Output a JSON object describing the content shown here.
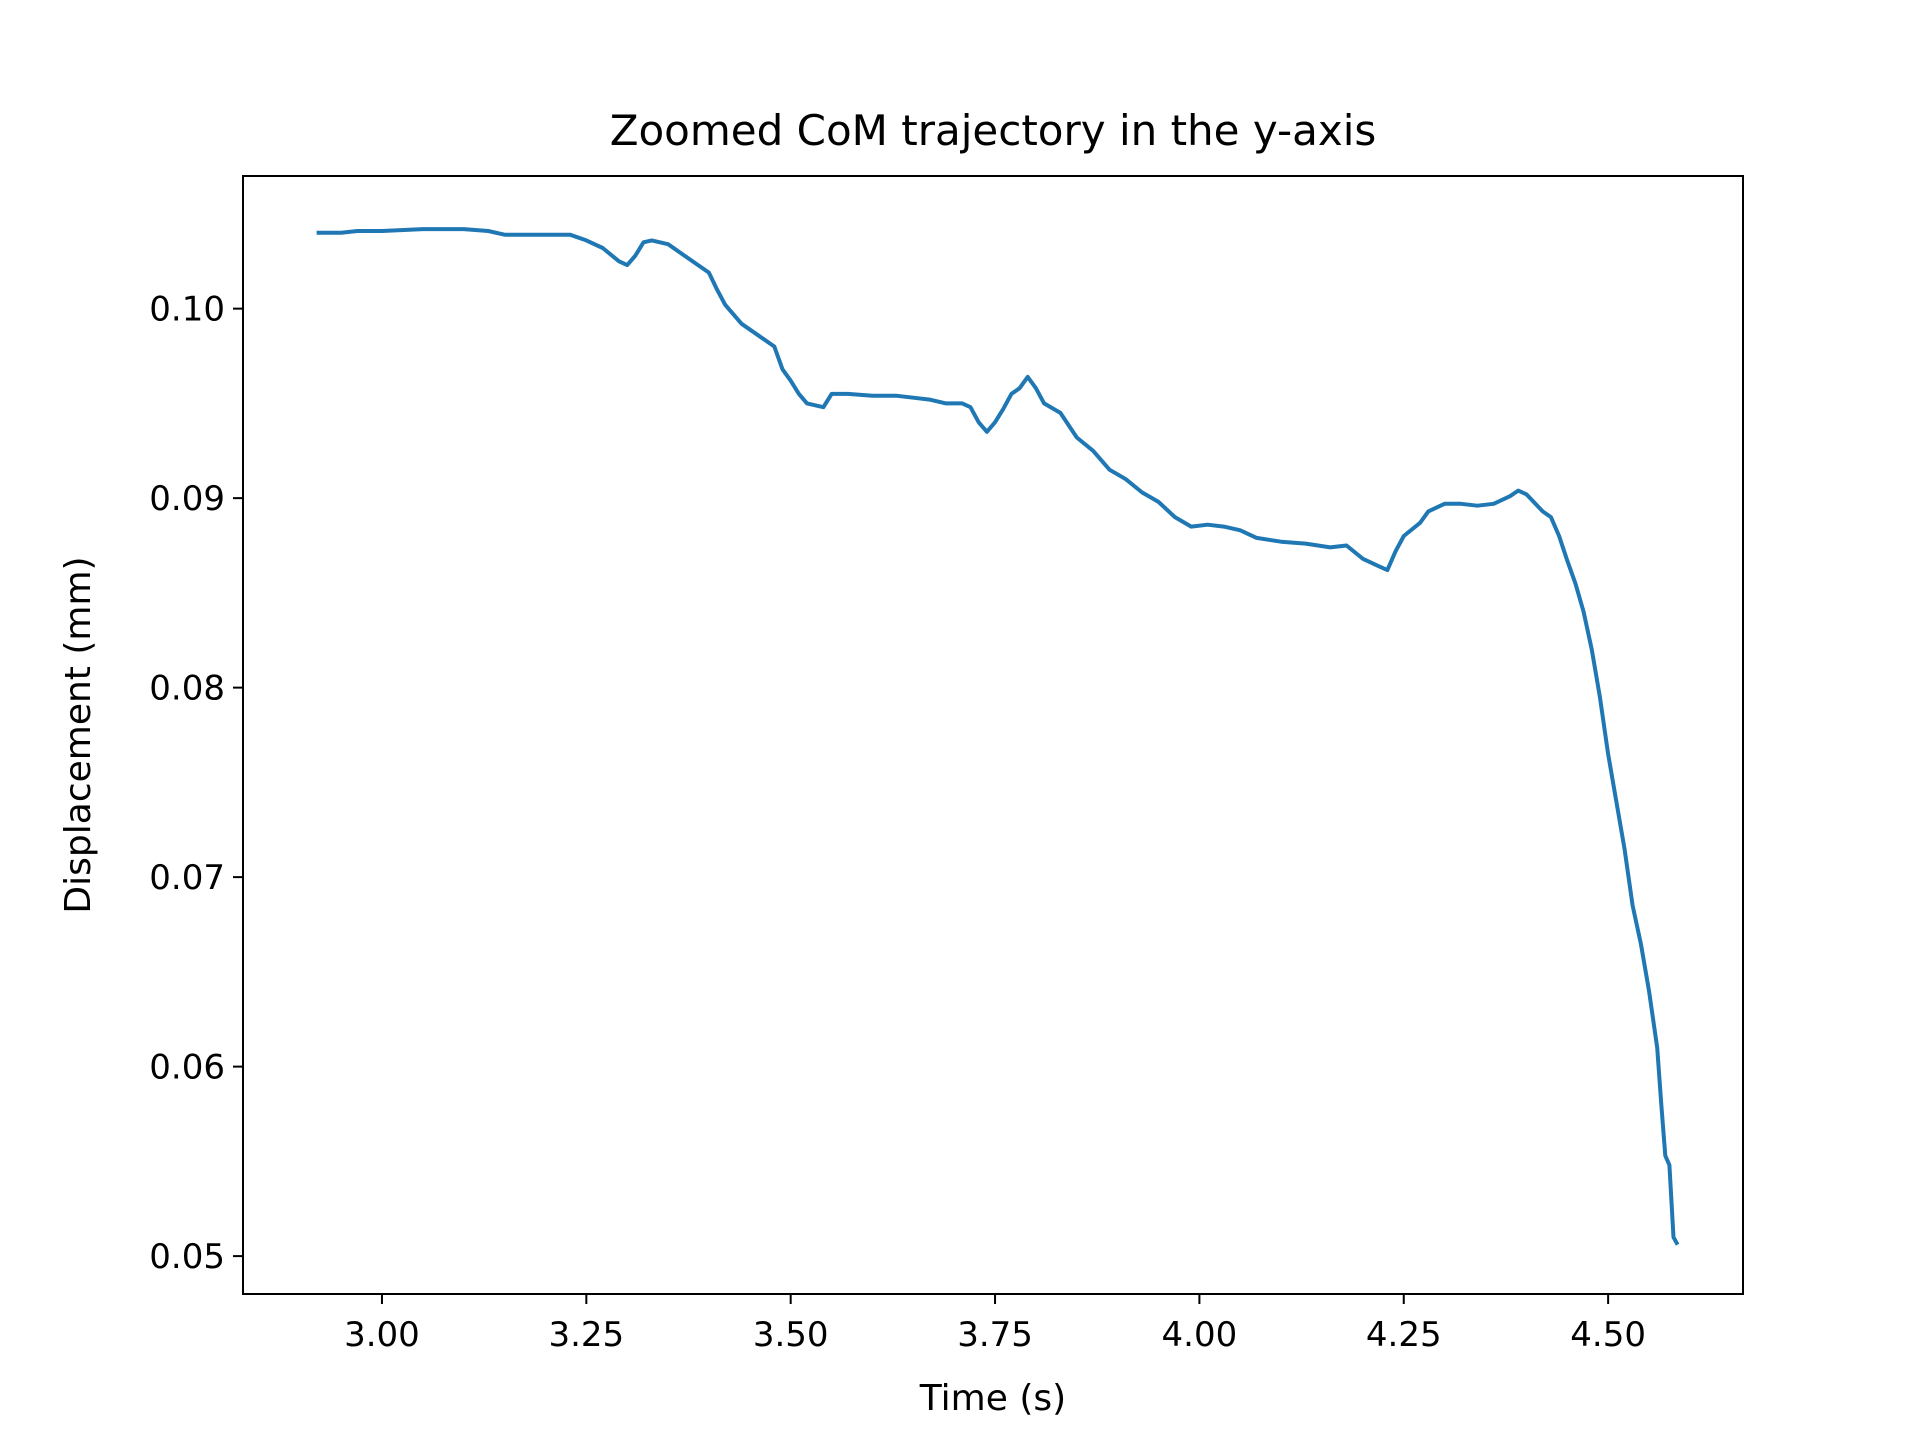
{
  "chart_data": {
    "type": "line",
    "title": "Zoomed CoM trajectory in the y-axis",
    "xlabel": "Time (s)",
    "ylabel": "Displacement (mm)",
    "xlim": [
      2.83,
      4.665
    ],
    "ylim": [
      0.048,
      0.107
    ],
    "x_ticks": [
      "3.00",
      "3.25",
      "3.50",
      "3.75",
      "4.00",
      "4.25",
      "4.50"
    ],
    "y_ticks": [
      "0.05",
      "0.06",
      "0.07",
      "0.08",
      "0.09",
      "0.10"
    ],
    "grid": false,
    "series": [
      {
        "color": "#1f77b4",
        "points": [
          [
            2.92,
            0.104
          ],
          [
            2.95,
            0.104
          ],
          [
            2.97,
            0.1041
          ],
          [
            3.0,
            0.1041
          ],
          [
            3.05,
            0.1042
          ],
          [
            3.1,
            0.1042
          ],
          [
            3.13,
            0.1041
          ],
          [
            3.15,
            0.1039
          ],
          [
            3.2,
            0.1039
          ],
          [
            3.23,
            0.1039
          ],
          [
            3.25,
            0.1036
          ],
          [
            3.27,
            0.1032
          ],
          [
            3.29,
            0.1025
          ],
          [
            3.3,
            0.1023
          ],
          [
            3.31,
            0.1028
          ],
          [
            3.32,
            0.1035
          ],
          [
            3.33,
            0.1036
          ],
          [
            3.35,
            0.1034
          ],
          [
            3.37,
            0.1028
          ],
          [
            3.39,
            0.1022
          ],
          [
            3.4,
            0.1019
          ],
          [
            3.41,
            0.101
          ],
          [
            3.42,
            0.1002
          ],
          [
            3.44,
            0.0992
          ],
          [
            3.46,
            0.0986
          ],
          [
            3.48,
            0.098
          ],
          [
            3.49,
            0.0968
          ],
          [
            3.5,
            0.0962
          ],
          [
            3.51,
            0.0955
          ],
          [
            3.52,
            0.095
          ],
          [
            3.54,
            0.0948
          ],
          [
            3.55,
            0.0955
          ],
          [
            3.57,
            0.0955
          ],
          [
            3.6,
            0.0954
          ],
          [
            3.63,
            0.0954
          ],
          [
            3.65,
            0.0953
          ],
          [
            3.67,
            0.0952
          ],
          [
            3.69,
            0.095
          ],
          [
            3.71,
            0.095
          ],
          [
            3.72,
            0.0948
          ],
          [
            3.73,
            0.094
          ],
          [
            3.74,
            0.0935
          ],
          [
            3.75,
            0.094
          ],
          [
            3.76,
            0.0947
          ],
          [
            3.77,
            0.0955
          ],
          [
            3.78,
            0.0958
          ],
          [
            3.79,
            0.0964
          ],
          [
            3.8,
            0.0958
          ],
          [
            3.81,
            0.095
          ],
          [
            3.83,
            0.0945
          ],
          [
            3.85,
            0.0932
          ],
          [
            3.87,
            0.0925
          ],
          [
            3.89,
            0.0915
          ],
          [
            3.91,
            0.091
          ],
          [
            3.93,
            0.0903
          ],
          [
            3.95,
            0.0898
          ],
          [
            3.97,
            0.089
          ],
          [
            3.99,
            0.0885
          ],
          [
            4.01,
            0.0886
          ],
          [
            4.03,
            0.0885
          ],
          [
            4.05,
            0.0883
          ],
          [
            4.07,
            0.0879
          ],
          [
            4.1,
            0.0877
          ],
          [
            4.13,
            0.0876
          ],
          [
            4.16,
            0.0874
          ],
          [
            4.18,
            0.0875
          ],
          [
            4.2,
            0.0868
          ],
          [
            4.22,
            0.0864
          ],
          [
            4.23,
            0.0862
          ],
          [
            4.24,
            0.0872
          ],
          [
            4.25,
            0.088
          ],
          [
            4.27,
            0.0887
          ],
          [
            4.28,
            0.0893
          ],
          [
            4.3,
            0.0897
          ],
          [
            4.32,
            0.0897
          ],
          [
            4.34,
            0.0896
          ],
          [
            4.36,
            0.0897
          ],
          [
            4.38,
            0.0901
          ],
          [
            4.39,
            0.0904
          ],
          [
            4.4,
            0.0902
          ],
          [
            4.42,
            0.0893
          ],
          [
            4.43,
            0.089
          ],
          [
            4.44,
            0.088
          ],
          [
            4.45,
            0.0867
          ],
          [
            4.46,
            0.0855
          ],
          [
            4.47,
            0.084
          ],
          [
            4.48,
            0.082
          ],
          [
            4.49,
            0.0795
          ],
          [
            4.5,
            0.0765
          ],
          [
            4.51,
            0.074
          ],
          [
            4.52,
            0.0715
          ],
          [
            4.53,
            0.0685
          ],
          [
            4.54,
            0.0665
          ],
          [
            4.55,
            0.064
          ],
          [
            4.56,
            0.061
          ],
          [
            4.565,
            0.058
          ],
          [
            4.57,
            0.0553
          ],
          [
            4.575,
            0.0548
          ],
          [
            4.58,
            0.051
          ],
          [
            4.585,
            0.0506
          ]
        ]
      }
    ]
  }
}
